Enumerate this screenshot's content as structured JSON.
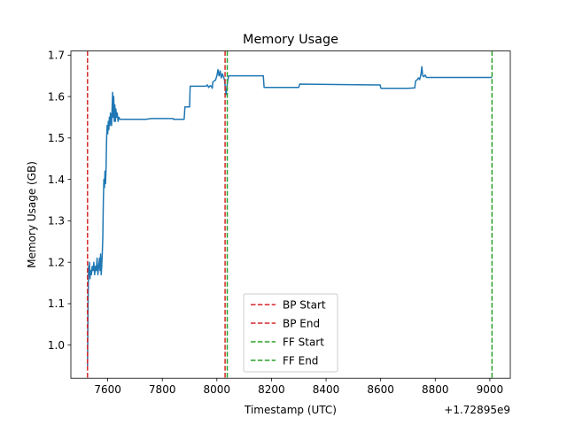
{
  "chart_data": {
    "type": "line",
    "title": "Memory Usage",
    "xlabel": "Timestamp (UTC)",
    "ylabel": "Memory Usage (GB)",
    "x_offset_label": "+1.72895e9",
    "xlim": [
      7465,
      9075
    ],
    "ylim": [
      0.92,
      1.71
    ],
    "x_ticks": [
      {
        "value": 7600,
        "label": "7600"
      },
      {
        "value": 7800,
        "label": "7800"
      },
      {
        "value": 8000,
        "label": "8000"
      },
      {
        "value": 8200,
        "label": "8200"
      },
      {
        "value": 8400,
        "label": "8400"
      },
      {
        "value": 8600,
        "label": "8600"
      },
      {
        "value": 8800,
        "label": "8800"
      },
      {
        "value": 9000,
        "label": "9000"
      }
    ],
    "y_ticks": [
      {
        "value": 1.0,
        "label": "1.0"
      },
      {
        "value": 1.1,
        "label": "1.1"
      },
      {
        "value": 1.2,
        "label": "1.2"
      },
      {
        "value": 1.3,
        "label": "1.3"
      },
      {
        "value": 1.4,
        "label": "1.4"
      },
      {
        "value": 1.5,
        "label": "1.5"
      },
      {
        "value": 1.6,
        "label": "1.6"
      },
      {
        "value": 1.7,
        "label": "1.7"
      }
    ],
    "grid": false,
    "legend_position": "lower-center",
    "series": [
      {
        "color": "#1f77b4",
        "points": [
          [
            7526,
            0.95
          ],
          [
            7527,
            1.02
          ],
          [
            7528,
            1.1
          ],
          [
            7529,
            1.15
          ],
          [
            7530,
            1.19
          ],
          [
            7531,
            1.17
          ],
          [
            7533,
            1.2
          ],
          [
            7535,
            1.16
          ],
          [
            7537,
            1.18
          ],
          [
            7540,
            1.17
          ],
          [
            7543,
            1.19
          ],
          [
            7546,
            1.18
          ],
          [
            7549,
            1.2
          ],
          [
            7552,
            1.17
          ],
          [
            7555,
            1.19
          ],
          [
            7558,
            1.18
          ],
          [
            7561,
            1.21
          ],
          [
            7564,
            1.17
          ],
          [
            7567,
            1.19
          ],
          [
            7570,
            1.21
          ],
          [
            7572,
            1.18
          ],
          [
            7574,
            1.22
          ],
          [
            7576,
            1.17
          ],
          [
            7578,
            1.19
          ],
          [
            7580,
            1.22
          ],
          [
            7582,
            1.26
          ],
          [
            7584,
            1.35
          ],
          [
            7586,
            1.4
          ],
          [
            7588,
            1.38
          ],
          [
            7590,
            1.42
          ],
          [
            7592,
            1.39
          ],
          [
            7594,
            1.43
          ],
          [
            7596,
            1.5
          ],
          [
            7598,
            1.53
          ],
          [
            7600,
            1.51
          ],
          [
            7602,
            1.54
          ],
          [
            7604,
            1.52
          ],
          [
            7606,
            1.55
          ],
          [
            7608,
            1.53
          ],
          [
            7610,
            1.56
          ],
          [
            7612,
            1.54
          ],
          [
            7614,
            1.53
          ],
          [
            7616,
            1.57
          ],
          [
            7618,
            1.61
          ],
          [
            7620,
            1.55
          ],
          [
            7622,
            1.6
          ],
          [
            7624,
            1.54
          ],
          [
            7626,
            1.58
          ],
          [
            7628,
            1.54
          ],
          [
            7630,
            1.57
          ],
          [
            7632,
            1.55
          ],
          [
            7635,
            1.56
          ],
          [
            7638,
            1.54
          ],
          [
            7641,
            1.55
          ],
          [
            7645,
            1.545
          ],
          [
            7700,
            1.545
          ],
          [
            7740,
            1.545
          ],
          [
            7760,
            1.547
          ],
          [
            7840,
            1.547
          ],
          [
            7841,
            1.545
          ],
          [
            7880,
            1.545
          ],
          [
            7883,
            1.575
          ],
          [
            7900,
            1.575
          ],
          [
            7902,
            1.625
          ],
          [
            7960,
            1.625
          ],
          [
            7965,
            1.628
          ],
          [
            7970,
            1.622
          ],
          [
            7975,
            1.626
          ],
          [
            7980,
            1.625
          ],
          [
            7983,
            1.62
          ],
          [
            7985,
            1.635
          ],
          [
            7995,
            1.64
          ],
          [
            8000,
            1.65
          ],
          [
            8004,
            1.665
          ],
          [
            8008,
            1.65
          ],
          [
            8012,
            1.662
          ],
          [
            8016,
            1.645
          ],
          [
            8020,
            1.655
          ],
          [
            8024,
            1.648
          ],
          [
            8028,
            1.64
          ],
          [
            8031,
            1.62
          ],
          [
            8034,
            1.605
          ],
          [
            8037,
            1.625
          ],
          [
            8040,
            1.64
          ],
          [
            8043,
            1.65
          ],
          [
            8170,
            1.65
          ],
          [
            8173,
            1.622
          ],
          [
            8300,
            1.622
          ],
          [
            8303,
            1.63
          ],
          [
            8598,
            1.628
          ],
          [
            8601,
            1.62
          ],
          [
            8700,
            1.62
          ],
          [
            8725,
            1.621
          ],
          [
            8728,
            1.638
          ],
          [
            8733,
            1.64
          ],
          [
            8738,
            1.645
          ],
          [
            8743,
            1.641
          ],
          [
            8748,
            1.655
          ],
          [
            8751,
            1.672
          ],
          [
            8754,
            1.65
          ],
          [
            8758,
            1.648
          ],
          [
            8763,
            1.652
          ],
          [
            8768,
            1.646
          ],
          [
            8800,
            1.646
          ],
          [
            9008,
            1.646
          ]
        ]
      }
    ],
    "vlines": [
      {
        "x": 7526,
        "color": "#d62728",
        "label": "BP Start"
      },
      {
        "x": 8030,
        "color": "#d62728",
        "label": "BP End"
      },
      {
        "x": 8038,
        "color": "#2ca02c",
        "label": "FF Start"
      },
      {
        "x": 9008,
        "color": "#2ca02c",
        "label": "FF End"
      }
    ]
  }
}
